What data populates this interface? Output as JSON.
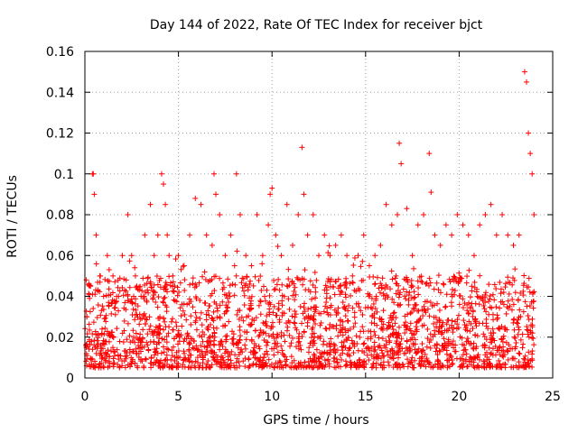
{
  "chart_data": {
    "type": "scatter",
    "title": "Day 144 of 2022, Rate Of TEC Index for receiver bjct",
    "xlabel": "GPS time / hours",
    "ylabel": "ROTI / TECUs",
    "xlim": [
      0,
      25
    ],
    "ylim": [
      0,
      0.16
    ],
    "xticks": [
      "0",
      "5",
      "10",
      "15",
      "20",
      "25"
    ],
    "yticks": [
      "0",
      "0.02",
      "0.04",
      "0.06",
      "0.08",
      "0.1",
      "0.12",
      "0.14",
      "0.16"
    ],
    "grid": true,
    "marker": "plus",
    "color": "#ff0000",
    "series": [
      {
        "name": "ROTI",
        "x": [
          0.1,
          0.3,
          0.4,
          0.45,
          0.5,
          0.6,
          0.8,
          1.0,
          1.2,
          1.5,
          1.8,
          2.0,
          2.3,
          2.5,
          2.7,
          3.0,
          3.2,
          3.5,
          3.7,
          3.9,
          4.1,
          4.2,
          4.3,
          4.4,
          4.5,
          4.7,
          5.0,
          5.3,
          5.6,
          5.9,
          6.2,
          6.5,
          6.8,
          6.9,
          7.0,
          7.2,
          7.5,
          7.8,
          8.0,
          8.1,
          8.3,
          8.6,
          8.9,
          9.2,
          9.5,
          9.8,
          9.9,
          10.0,
          10.2,
          10.5,
          10.8,
          11.1,
          11.4,
          11.6,
          11.7,
          11.9,
          12.2,
          12.5,
          12.8,
          13.1,
          13.4,
          13.7,
          14.0,
          14.3,
          14.6,
          14.9,
          15.2,
          15.5,
          15.8,
          16.1,
          16.4,
          16.7,
          16.8,
          16.9,
          17.2,
          17.5,
          17.8,
          18.1,
          18.4,
          18.5,
          18.7,
          19.0,
          19.3,
          19.6,
          19.9,
          20.2,
          20.5,
          20.8,
          21.1,
          21.4,
          21.7,
          22.0,
          22.3,
          22.6,
          22.9,
          23.2,
          23.5,
          23.6,
          23.7,
          23.8,
          23.9,
          24.0
        ],
        "y": [
          0.03,
          0.045,
          0.1,
          0.1,
          0.09,
          0.07,
          0.05,
          0.04,
          0.06,
          0.05,
          0.04,
          0.06,
          0.08,
          0.06,
          0.05,
          0.04,
          0.07,
          0.085,
          0.06,
          0.07,
          0.1,
          0.095,
          0.085,
          0.07,
          0.06,
          0.05,
          0.06,
          0.055,
          0.07,
          0.088,
          0.085,
          0.07,
          0.065,
          0.1,
          0.09,
          0.08,
          0.06,
          0.07,
          0.055,
          0.1,
          0.08,
          0.06,
          0.055,
          0.08,
          0.06,
          0.075,
          0.09,
          0.093,
          0.07,
          0.06,
          0.085,
          0.065,
          0.08,
          0.113,
          0.09,
          0.07,
          0.08,
          0.06,
          0.07,
          0.06,
          0.065,
          0.07,
          0.06,
          0.05,
          0.06,
          0.07,
          0.055,
          0.06,
          0.065,
          0.085,
          0.075,
          0.08,
          0.115,
          0.105,
          0.083,
          0.06,
          0.075,
          0.08,
          0.11,
          0.091,
          0.07,
          0.065,
          0.075,
          0.07,
          0.08,
          0.075,
          0.07,
          0.06,
          0.075,
          0.08,
          0.085,
          0.07,
          0.08,
          0.07,
          0.065,
          0.07,
          0.15,
          0.145,
          0.12,
          0.11,
          0.1,
          0.08
        ],
        "cloud_range": [
          0.005,
          0.05
        ]
      }
    ]
  }
}
